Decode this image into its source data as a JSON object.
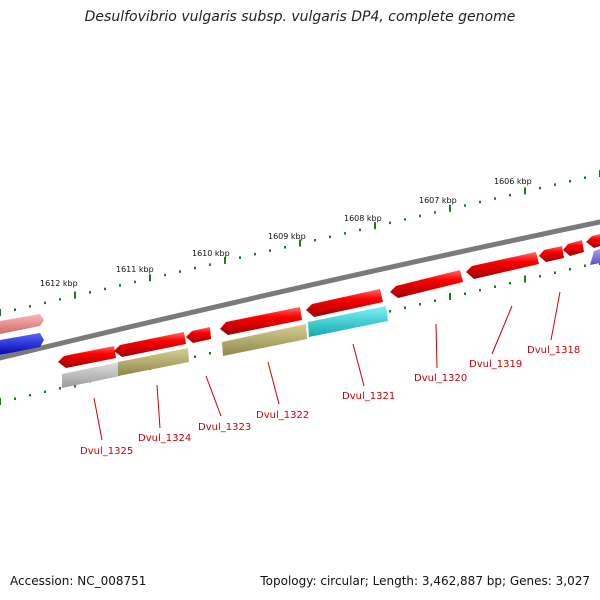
{
  "title": "Desulfovibrio vulgaris subsp. vulgaris DP4, complete genome",
  "footer": {
    "accession": "Accession: NC_008751",
    "summary": "Topology: circular; Length: 3,462,887 bp; Genes: 3,027"
  },
  "ruler": {
    "tick_labels": [
      "1612 kbp",
      "1611 kbp",
      "1610 kbp",
      "1609 kbp",
      "1608 kbp",
      "1607 kbp",
      "1606 kbp"
    ]
  },
  "genes": [
    {
      "label": "Dvul_1325"
    },
    {
      "label": "Dvul_1324"
    },
    {
      "label": "Dvul_1323"
    },
    {
      "label": "Dvul_1322"
    },
    {
      "label": "Dvul_1321"
    },
    {
      "label": "Dvul_1320"
    },
    {
      "label": "Dvul_1319"
    },
    {
      "label": "Dvul_1318"
    }
  ],
  "colors": {
    "backbone": "#7a7a7a",
    "gene_cds": "#ee0000",
    "gene_gray": "#b8b8b8",
    "gene_olive": "#b5ae6a",
    "gene_cyan": "#1ecfd6",
    "gene_pink": "#ee8a8a",
    "gene_blue": "#0a1aee",
    "gene_violet": "#7b6fe0",
    "tick": "#1e7a1e",
    "label": "#cc0000"
  }
}
